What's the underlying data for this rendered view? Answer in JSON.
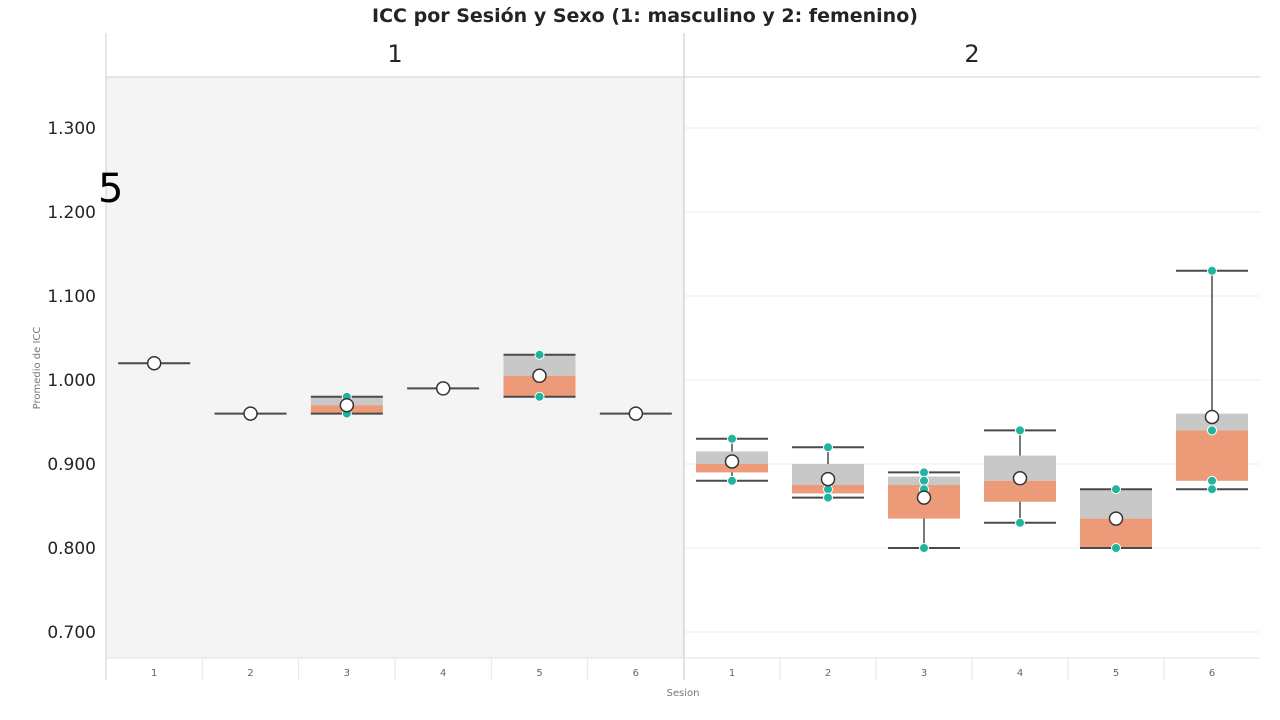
{
  "chart_data": {
    "type": "boxplot",
    "title": "ICC por Sesión y Sexo (1: masculino y 2: femenino)",
    "xlabel": "Sesion",
    "ylabel": "Promedio de ICC",
    "ylim": [
      0.68,
      1.36
    ],
    "yticks": [
      0.7,
      0.8,
      0.9,
      1.0,
      1.1,
      1.2,
      1.3
    ],
    "ytick_labels": [
      "0.700",
      "0.800",
      "0.900",
      "1.000",
      "1.100",
      "1.200",
      "1.300"
    ],
    "overlay_text": "5",
    "colors": {
      "upper_box": "#c8c8c8",
      "lower_box": "#ec9a78",
      "point": "#1fb3a0",
      "whisker": "#4a4a4a",
      "mean_marker": "#ffffff",
      "facet1_bg": "#f4f4f4",
      "grid": "#ececec"
    },
    "facets": [
      {
        "label": "1",
        "shaded": true,
        "groups": [
          {
            "category": "1",
            "min": 1.02,
            "q1": 1.02,
            "median": 1.02,
            "q3": 1.02,
            "max": 1.02,
            "mean": 1.02,
            "points": []
          },
          {
            "category": "2",
            "min": 0.96,
            "q1": 0.96,
            "median": 0.96,
            "q3": 0.96,
            "max": 0.96,
            "mean": 0.96,
            "points": []
          },
          {
            "category": "3",
            "min": 0.96,
            "q1": 0.96,
            "median": 0.97,
            "q3": 0.98,
            "max": 0.98,
            "mean": 0.97,
            "points": [
              0.98,
              0.96
            ]
          },
          {
            "category": "4",
            "min": 0.99,
            "q1": 0.99,
            "median": 0.99,
            "q3": 0.99,
            "max": 0.99,
            "mean": 0.99,
            "points": []
          },
          {
            "category": "5",
            "min": 0.98,
            "q1": 0.98,
            "median": 1.005,
            "q3": 1.03,
            "max": 1.03,
            "mean": 1.005,
            "points": [
              1.03,
              0.98
            ]
          },
          {
            "category": "6",
            "min": 0.96,
            "q1": 0.96,
            "median": 0.96,
            "q3": 0.96,
            "max": 0.96,
            "mean": 0.96,
            "points": []
          }
        ]
      },
      {
        "label": "2",
        "shaded": false,
        "groups": [
          {
            "category": "1",
            "min": 0.88,
            "q1": 0.89,
            "median": 0.9,
            "q3": 0.915,
            "max": 0.93,
            "mean": 0.903,
            "points": [
              0.93,
              0.88
            ]
          },
          {
            "category": "2",
            "min": 0.86,
            "q1": 0.865,
            "median": 0.875,
            "q3": 0.9,
            "max": 0.92,
            "mean": 0.882,
            "points": [
              0.92,
              0.87,
              0.86
            ]
          },
          {
            "category": "3",
            "min": 0.8,
            "q1": 0.835,
            "median": 0.875,
            "q3": 0.885,
            "max": 0.89,
            "mean": 0.86,
            "points": [
              0.89,
              0.88,
              0.87,
              0.8
            ]
          },
          {
            "category": "4",
            "min": 0.83,
            "q1": 0.855,
            "median": 0.88,
            "q3": 0.91,
            "max": 0.94,
            "mean": 0.883,
            "points": [
              0.94,
              0.88,
              0.83
            ]
          },
          {
            "category": "5",
            "min": 0.8,
            "q1": 0.8,
            "median": 0.835,
            "q3": 0.87,
            "max": 0.87,
            "mean": 0.835,
            "points": [
              0.87,
              0.8
            ]
          },
          {
            "category": "6",
            "min": 0.87,
            "q1": 0.88,
            "median": 0.94,
            "q3": 0.96,
            "max": 1.13,
            "mean": 0.956,
            "points": [
              1.13,
              0.94,
              0.88,
              0.87
            ]
          }
        ]
      }
    ]
  }
}
